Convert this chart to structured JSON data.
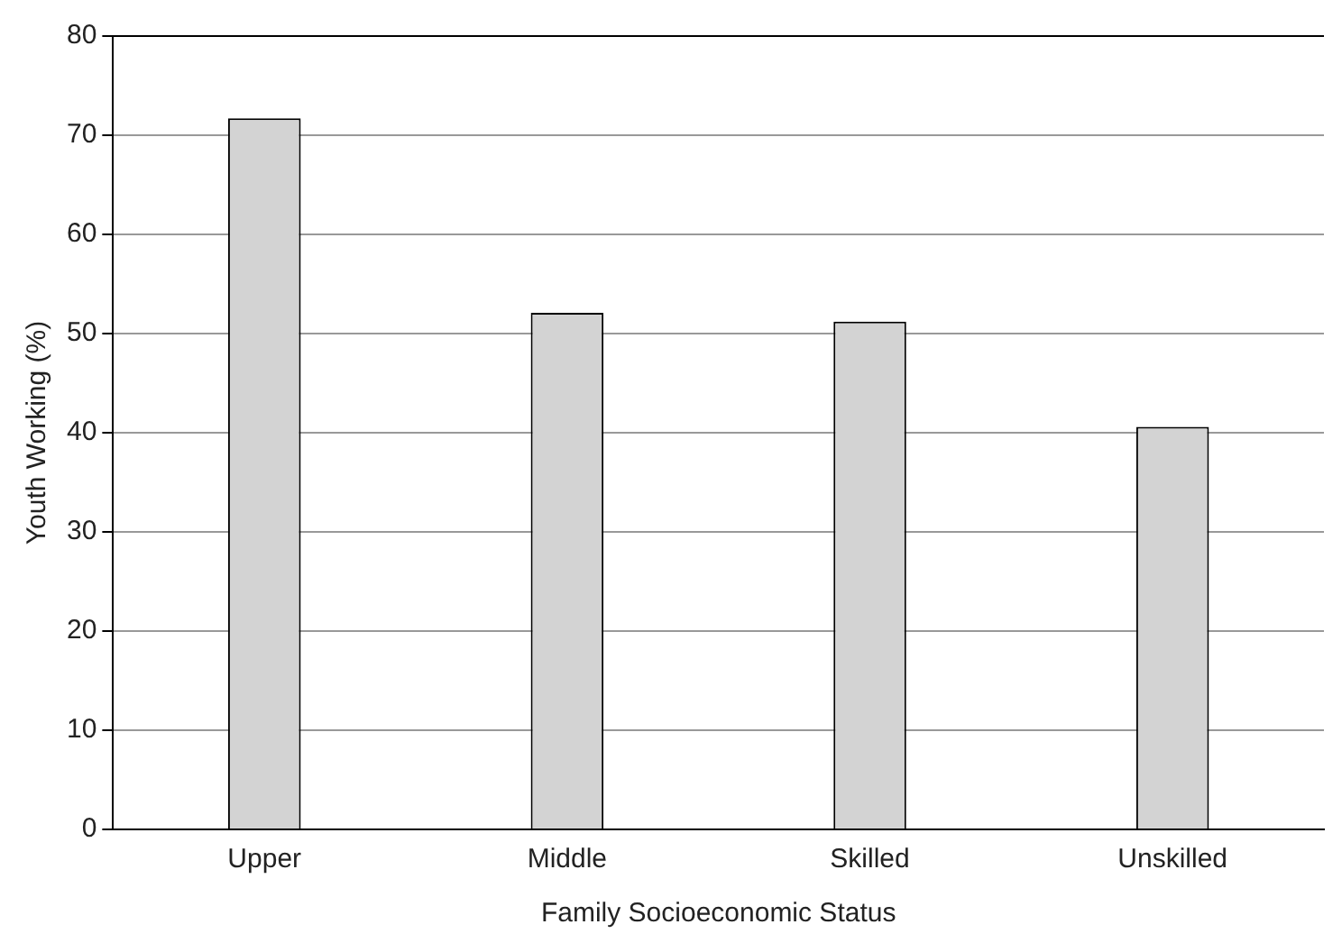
{
  "chart_data": {
    "type": "bar",
    "xlabel": "Family Socioeconomic Status",
    "ylabel": "Youth Working (%)",
    "categories": [
      "Upper",
      "Middle",
      "Skilled",
      "Unskilled"
    ],
    "values": [
      71.7,
      52.1,
      51.2,
      40.6
    ],
    "color": "#d3d3d3",
    "ylim": [
      0,
      80
    ],
    "yticks": [
      0,
      10,
      20,
      30,
      40,
      50,
      60,
      70,
      80
    ],
    "grid": "y"
  }
}
